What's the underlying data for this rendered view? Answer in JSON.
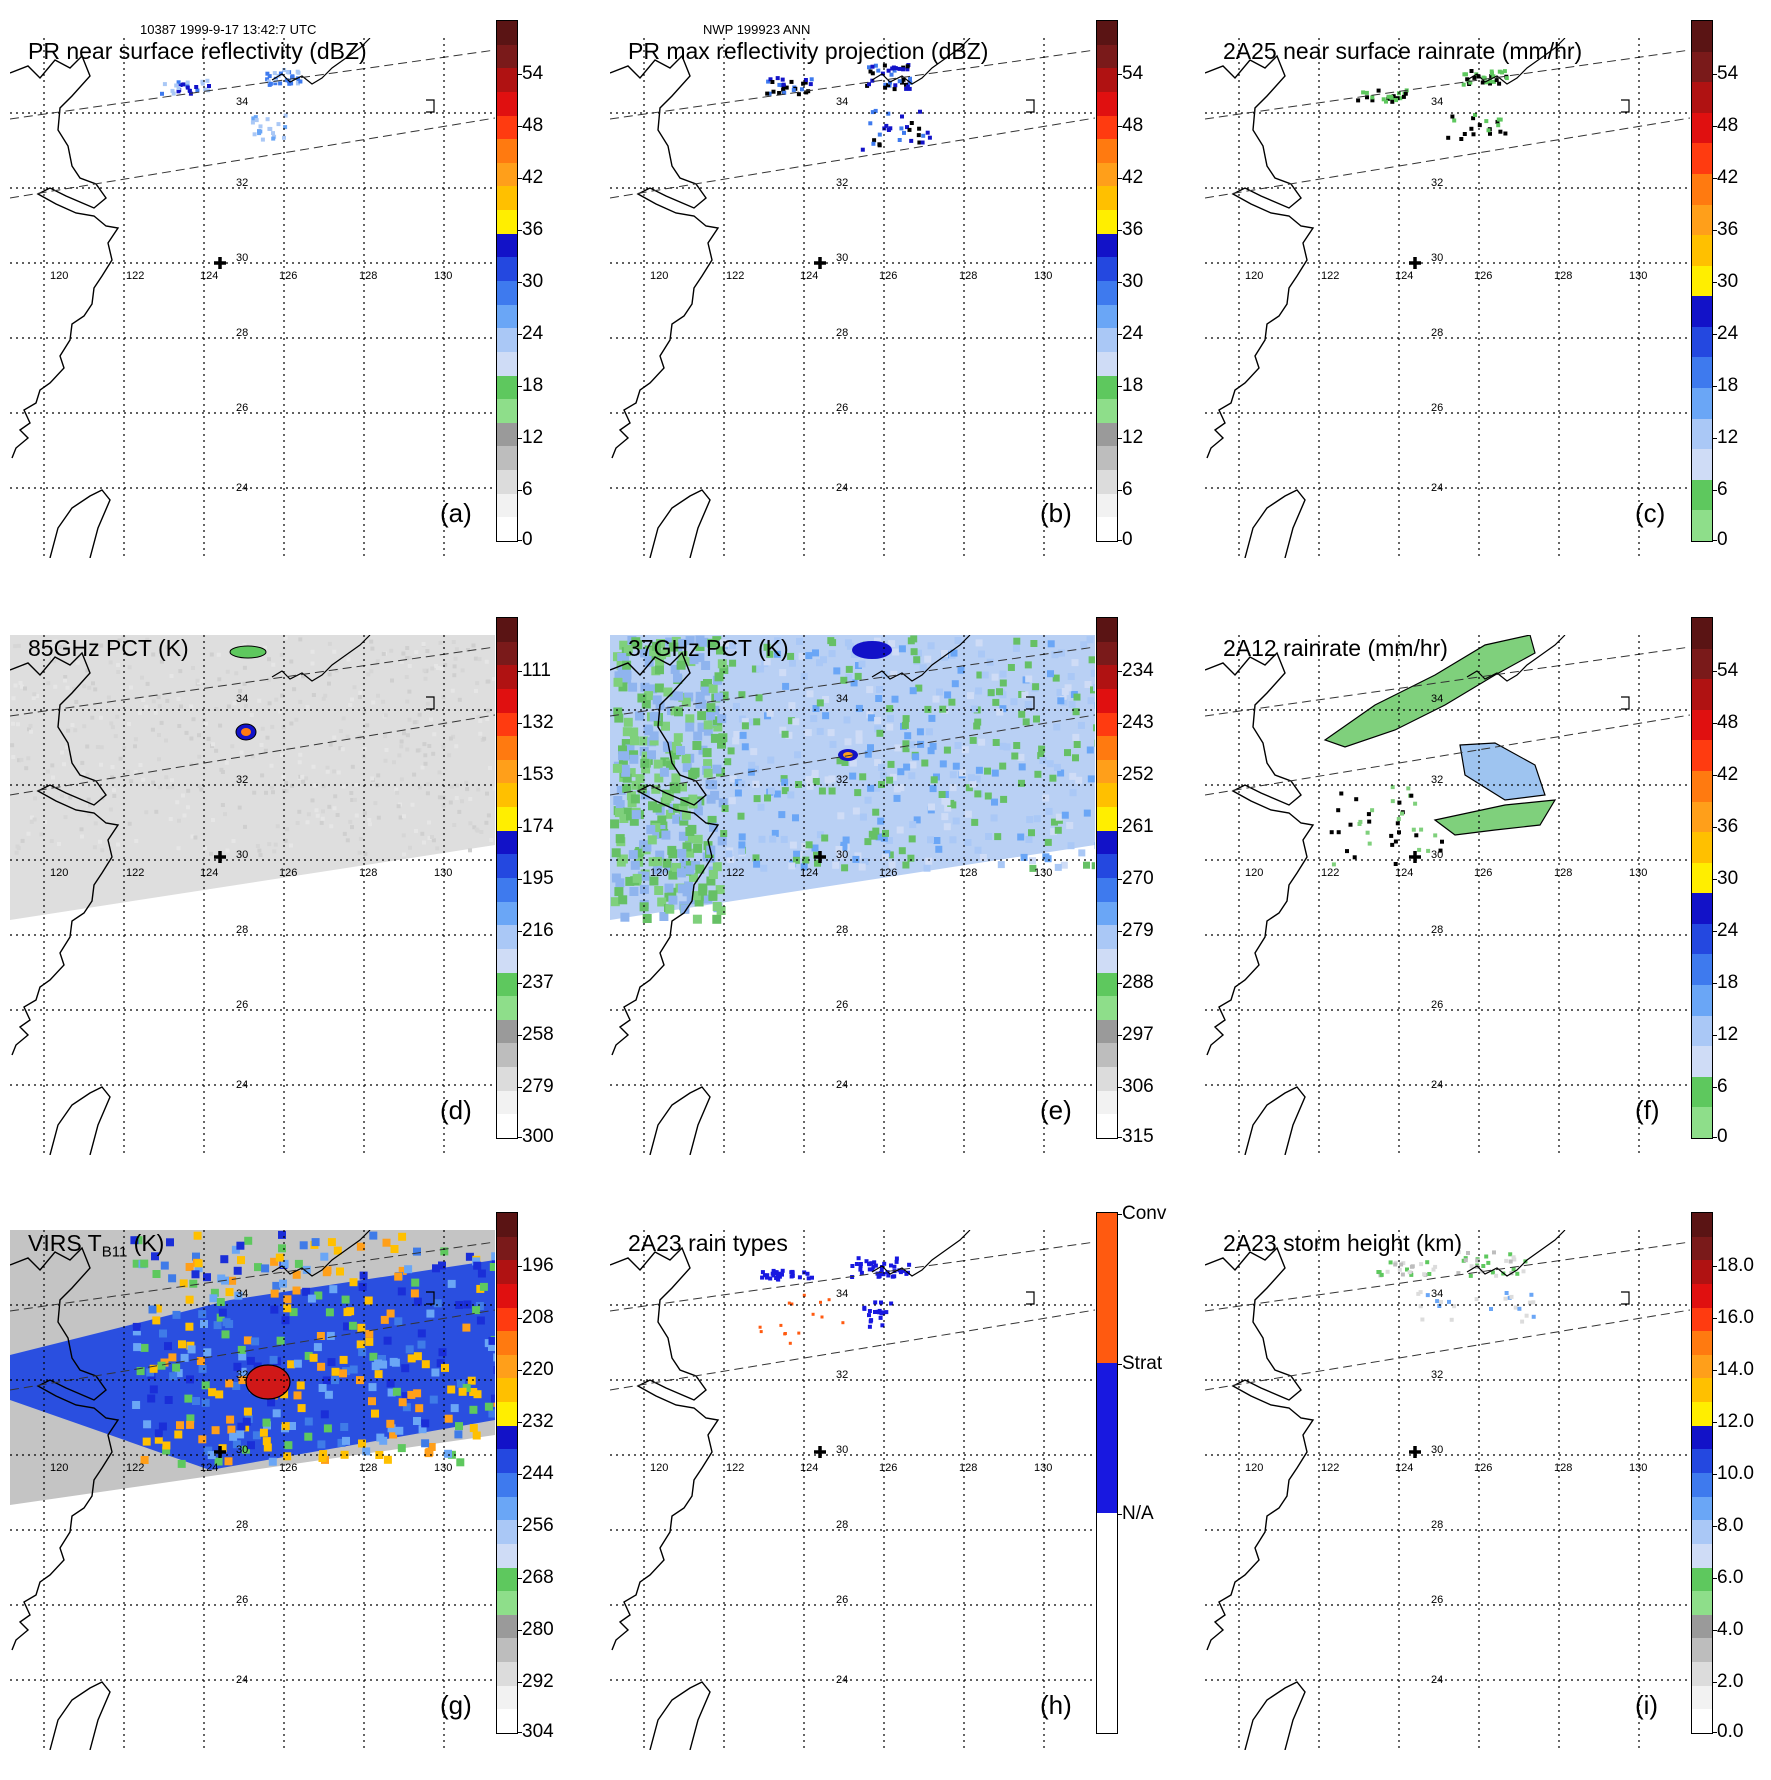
{
  "header": {
    "left": "10387 1999-9-17 13:42:7 UTC",
    "center": "NWP 199923 ANN"
  },
  "lon_labels": [
    "120",
    "122",
    "124",
    "126",
    "128",
    "130"
  ],
  "lat_labels": [
    "34",
    "32",
    "30",
    "28",
    "26",
    "24"
  ],
  "panels": [
    {
      "id": "a",
      "title": "PR near surface reflectivity (dBZ)",
      "label": "(a)",
      "ticks": [
        "54",
        "48",
        "42",
        "36",
        "30",
        "24",
        "18",
        "12",
        "6",
        "0"
      ],
      "scale": "dbz",
      "swath": "none",
      "overlay": "pr-near"
    },
    {
      "id": "b",
      "title": "PR max reflectivity projection (dBZ)",
      "label": "(b)",
      "ticks": [
        "54",
        "48",
        "42",
        "36",
        "30",
        "24",
        "18",
        "12",
        "6",
        "0"
      ],
      "scale": "dbz",
      "swath": "none",
      "overlay": "pr-max"
    },
    {
      "id": "c",
      "title": "2A25 near surface rainrate (mm/hr)",
      "label": "(c)",
      "ticks": [
        "54",
        "48",
        "42",
        "36",
        "30",
        "24",
        "18",
        "12",
        "6",
        "0"
      ],
      "scale": "rain",
      "swath": "none",
      "overlay": "rain25"
    },
    {
      "id": "d",
      "title": "85GHz PCT (K)",
      "label": "(d)",
      "ticks": [
        "111",
        "132",
        "153",
        "174",
        "195",
        "216",
        "237",
        "258",
        "279",
        "300"
      ],
      "scale": "dbz",
      "swath": "gray",
      "overlay": "pct85"
    },
    {
      "id": "e",
      "title": "37GHz PCT (K)",
      "label": "(e)",
      "ticks": [
        "234",
        "243",
        "252",
        "261",
        "270",
        "279",
        "288",
        "297",
        "306",
        "315"
      ],
      "scale": "dbz",
      "swath": "blue",
      "overlay": "pct37"
    },
    {
      "id": "f",
      "title": "2A12 rainrate (mm/hr)",
      "label": "(f)",
      "ticks": [
        "54",
        "48",
        "42",
        "36",
        "30",
        "24",
        "18",
        "12",
        "6",
        "0"
      ],
      "scale": "rain",
      "swath": "none",
      "overlay": "rain12"
    },
    {
      "id": "g",
      "title": "VIRS T",
      "title_sub": "B11",
      "title_tail": " (K)",
      "label": "(g)",
      "ticks": [
        "196",
        "208",
        "220",
        "232",
        "244",
        "256",
        "268",
        "280",
        "292",
        "304"
      ],
      "scale": "dbz",
      "swath": "virs",
      "overlay": "virs"
    },
    {
      "id": "h",
      "title": "2A23 rain types",
      "label": "(h)",
      "ticks": [
        "Conv",
        "Strat",
        "N/A"
      ],
      "scale": "types",
      "swath": "none",
      "overlay": "types"
    },
    {
      "id": "i",
      "title": "2A23 storm height (km)",
      "label": "(i)",
      "ticks": [
        "18.0",
        "16.0",
        "14.0",
        "12.0",
        "10.0",
        "8.0",
        "6.0",
        "4.0",
        "2.0",
        "0.0"
      ],
      "scale": "dbz",
      "swath": "none",
      "overlay": "height"
    }
  ],
  "colors": {
    "dbz_scale": [
      "#5a1414",
      "#7a1a1a",
      "#b01212",
      "#e01010",
      "#ff3b10",
      "#ff7a10",
      "#ff9f1a",
      "#ffc000",
      "#ffee00",
      "#1212c8",
      "#2448e0",
      "#3e7aee",
      "#6aa6f6",
      "#aac8f6",
      "#cfdcf6",
      "#5ec85e",
      "#8ede8a",
      "#9a9a9a",
      "#bdbdbd",
      "#dcdcdc",
      "#f2f2f2",
      "#ffffff"
    ],
    "types": {
      "conv": "#ff5a10",
      "strat": "#1818e0",
      "na": "#ffffff"
    }
  }
}
